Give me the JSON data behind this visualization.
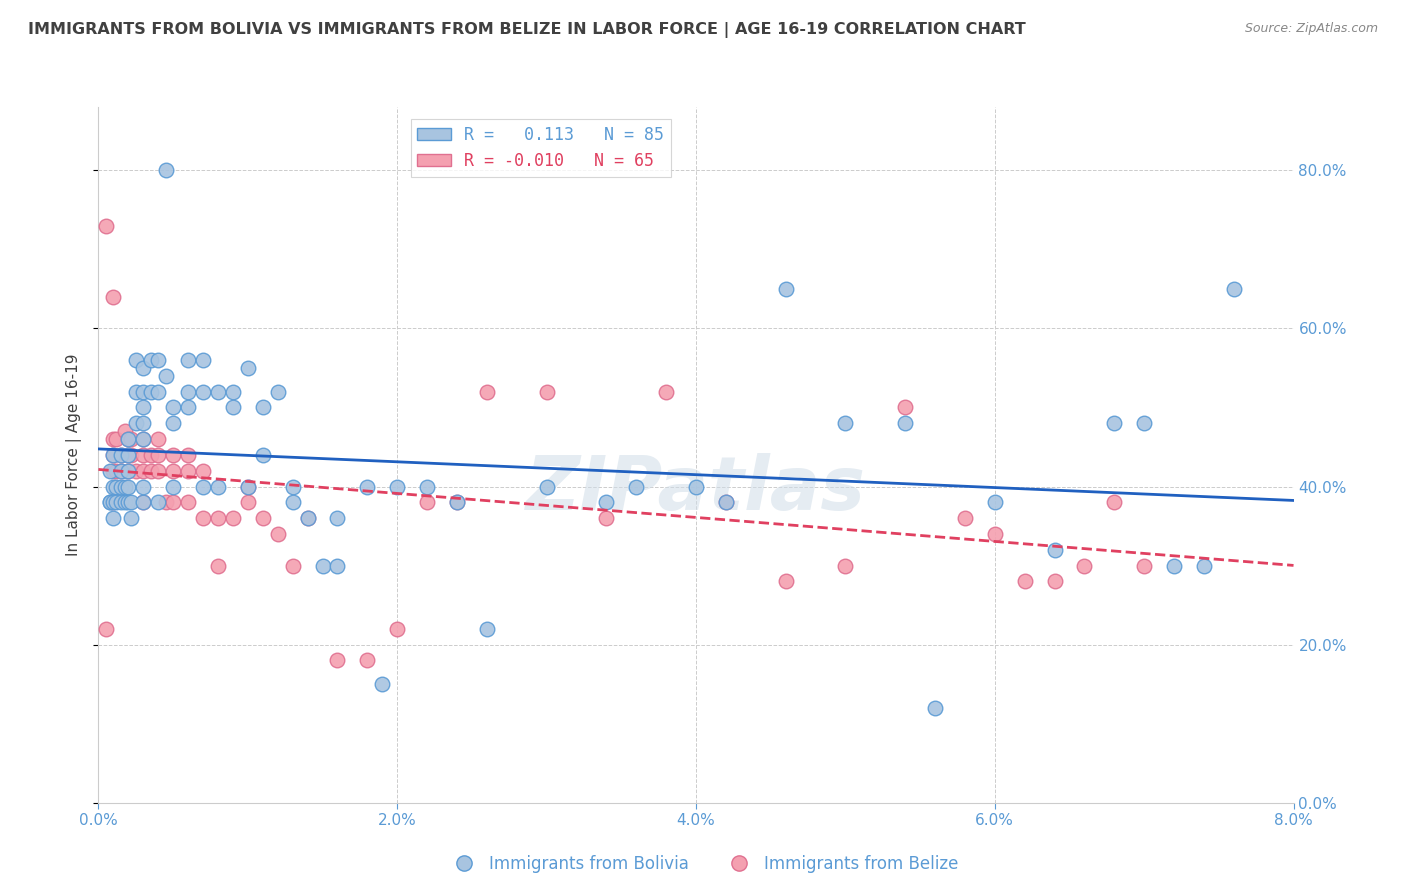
{
  "title": "IMMIGRANTS FROM BOLIVIA VS IMMIGRANTS FROM BELIZE IN LABOR FORCE | AGE 16-19 CORRELATION CHART",
  "source": "Source: ZipAtlas.com",
  "ylabel": "In Labor Force | Age 16-19",
  "xlim": [
    0.0,
    0.08
  ],
  "ylim": [
    0.0,
    0.88
  ],
  "yticks": [
    0.0,
    0.2,
    0.4,
    0.6,
    0.8
  ],
  "xticks": [
    0.0,
    0.02,
    0.04,
    0.06,
    0.08
  ],
  "bolivia_color": "#a8c4e0",
  "belize_color": "#f4a0b0",
  "bolivia_edge": "#5b9bd5",
  "belize_edge": "#e07090",
  "line_bolivia_color": "#2060c0",
  "line_belize_color": "#e04060",
  "legend_bolivia_label": "Immigrants from Bolivia",
  "legend_belize_label": "Immigrants from Belize",
  "R_bolivia": 0.113,
  "N_bolivia": 85,
  "R_belize": -0.01,
  "N_belize": 65,
  "bolivia_x": [
    0.0045,
    0.0008,
    0.0008,
    0.0008,
    0.001,
    0.001,
    0.001,
    0.001,
    0.0012,
    0.0012,
    0.0015,
    0.0015,
    0.0015,
    0.0015,
    0.0018,
    0.0018,
    0.002,
    0.002,
    0.002,
    0.002,
    0.002,
    0.0022,
    0.0022,
    0.0025,
    0.0025,
    0.0025,
    0.003,
    0.003,
    0.003,
    0.003,
    0.003,
    0.003,
    0.003,
    0.0035,
    0.0035,
    0.004,
    0.004,
    0.004,
    0.0045,
    0.005,
    0.005,
    0.005,
    0.006,
    0.006,
    0.006,
    0.007,
    0.007,
    0.007,
    0.008,
    0.008,
    0.009,
    0.009,
    0.01,
    0.01,
    0.011,
    0.011,
    0.012,
    0.013,
    0.013,
    0.014,
    0.015,
    0.016,
    0.016,
    0.018,
    0.019,
    0.02,
    0.022,
    0.024,
    0.026,
    0.03,
    0.034,
    0.036,
    0.04,
    0.042,
    0.046,
    0.05,
    0.054,
    0.056,
    0.06,
    0.064,
    0.068,
    0.07,
    0.072,
    0.074,
    0.076
  ],
  "bolivia_y": [
    0.8,
    0.38,
    0.42,
    0.38,
    0.4,
    0.44,
    0.36,
    0.38,
    0.4,
    0.38,
    0.42,
    0.38,
    0.44,
    0.4,
    0.38,
    0.4,
    0.42,
    0.38,
    0.44,
    0.46,
    0.4,
    0.36,
    0.38,
    0.56,
    0.52,
    0.48,
    0.55,
    0.52,
    0.5,
    0.48,
    0.46,
    0.38,
    0.4,
    0.56,
    0.52,
    0.56,
    0.52,
    0.38,
    0.54,
    0.5,
    0.48,
    0.4,
    0.56,
    0.52,
    0.5,
    0.56,
    0.52,
    0.4,
    0.52,
    0.4,
    0.52,
    0.5,
    0.55,
    0.4,
    0.5,
    0.44,
    0.52,
    0.4,
    0.38,
    0.36,
    0.3,
    0.36,
    0.3,
    0.4,
    0.15,
    0.4,
    0.4,
    0.38,
    0.22,
    0.4,
    0.38,
    0.4,
    0.4,
    0.38,
    0.65,
    0.48,
    0.48,
    0.12,
    0.38,
    0.32,
    0.48,
    0.48,
    0.3,
    0.3,
    0.65
  ],
  "belize_x": [
    0.0005,
    0.0005,
    0.001,
    0.001,
    0.001,
    0.001,
    0.001,
    0.0012,
    0.0012,
    0.0015,
    0.0015,
    0.0018,
    0.002,
    0.002,
    0.002,
    0.0022,
    0.0022,
    0.0025,
    0.003,
    0.003,
    0.003,
    0.003,
    0.0035,
    0.0035,
    0.004,
    0.004,
    0.004,
    0.0045,
    0.005,
    0.005,
    0.005,
    0.006,
    0.006,
    0.006,
    0.007,
    0.007,
    0.008,
    0.008,
    0.009,
    0.01,
    0.01,
    0.011,
    0.012,
    0.013,
    0.014,
    0.016,
    0.018,
    0.02,
    0.022,
    0.024,
    0.026,
    0.03,
    0.034,
    0.038,
    0.042,
    0.046,
    0.05,
    0.054,
    0.058,
    0.06,
    0.062,
    0.064,
    0.066,
    0.068,
    0.07
  ],
  "belize_y": [
    0.73,
    0.22,
    0.64,
    0.44,
    0.42,
    0.46,
    0.38,
    0.46,
    0.42,
    0.44,
    0.42,
    0.47,
    0.46,
    0.44,
    0.42,
    0.44,
    0.46,
    0.42,
    0.46,
    0.44,
    0.42,
    0.38,
    0.44,
    0.42,
    0.44,
    0.46,
    0.42,
    0.38,
    0.44,
    0.42,
    0.38,
    0.44,
    0.42,
    0.38,
    0.42,
    0.36,
    0.36,
    0.3,
    0.36,
    0.4,
    0.38,
    0.36,
    0.34,
    0.3,
    0.36,
    0.18,
    0.18,
    0.22,
    0.38,
    0.38,
    0.52,
    0.52,
    0.36,
    0.52,
    0.38,
    0.28,
    0.3,
    0.5,
    0.36,
    0.34,
    0.28,
    0.28,
    0.3,
    0.38,
    0.3
  ],
  "watermark": "ZIPatlas",
  "background_color": "#ffffff",
  "grid_color": "#cccccc",
  "title_color": "#404040",
  "axis_color": "#5b9bd5"
}
